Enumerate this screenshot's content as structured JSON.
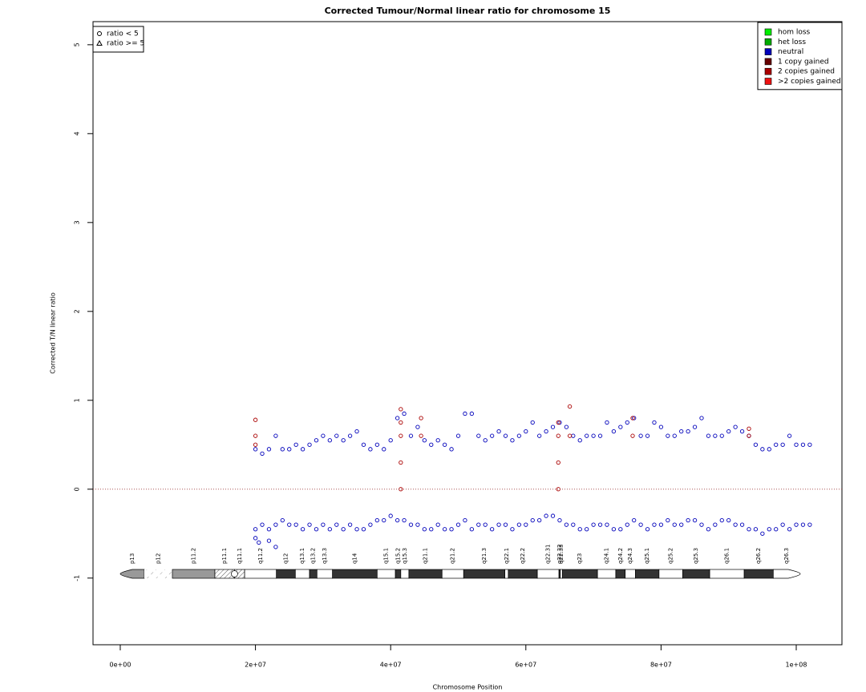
{
  "chart_data": {
    "type": "scatter",
    "title": "Corrected Tumour/Normal linear ratio for chromosome  15",
    "x_label": "Chromosome Position",
    "y_label": "Corrected T/N linear ratio",
    "xlim": [
      -4030000,
      106760000
    ],
    "ylim": [
      -1.75,
      5.26
    ],
    "xticks": [
      {
        "value": 0,
        "label": "0e+00"
      },
      {
        "value": 20000000,
        "label": "2e+07"
      },
      {
        "value": 40000000,
        "label": "4e+07"
      },
      {
        "value": 60000000,
        "label": "6e+07"
      },
      {
        "value": 80000000,
        "label": "8e+07"
      },
      {
        "value": 100000000,
        "label": "1e+08"
      }
    ],
    "yticks": [
      -1,
      0,
      1,
      2,
      3,
      4,
      5
    ],
    "reference_line": 0,
    "legend": "topright",
    "shape_legend": {
      "position": "topleft",
      "entries": [
        {
          "label": "ratio < 5",
          "shape": "circle"
        },
        {
          "label": "ratio >= 5",
          "shape": "triangle"
        }
      ]
    },
    "series": [
      {
        "name": "hom loss",
        "color": "#00ee00",
        "x": [],
        "y": []
      },
      {
        "name": "het loss",
        "color": "#00aa00",
        "x": [],
        "y": []
      },
      {
        "name": "neutral",
        "color": "#0000bb",
        "x": [
          20000000.0,
          21000000.0,
          22000000.0,
          23000000.0,
          24000000.0,
          25000000.0,
          26000000.0,
          27000000.0,
          28000000.0,
          29000000.0,
          30000000.0,
          31000000.0,
          32000000.0,
          33000000.0,
          34000000.0,
          35000000.0,
          36000000.0,
          37000000.0,
          38000000.0,
          39000000.0,
          40000000.0,
          41000000.0,
          42000000.0,
          43000000.0,
          44000000.0,
          45000000.0,
          46000000.0,
          47000000.0,
          48000000.0,
          49000000.0,
          50000000.0,
          51000000.0,
          52000000.0,
          53000000.0,
          54000000.0,
          55000000.0,
          56000000.0,
          57000000.0,
          58000000.0,
          59000000.0,
          60000000.0,
          61000000.0,
          62000000.0,
          63000000.0,
          64000000.0,
          65000000.0,
          66000000.0,
          67000000.0,
          68000000.0,
          69000000.0,
          70000000.0,
          71000000.0,
          72000000.0,
          73000000.0,
          74000000.0,
          75000000.0,
          76000000.0,
          77000000.0,
          78000000.0,
          79000000.0,
          80000000.0,
          81000000.0,
          82000000.0,
          83000000.0,
          84000000.0,
          85000000.0,
          86000000.0,
          87000000.0,
          88000000.0,
          89000000.0,
          90000000.0,
          91000000.0,
          92000000.0,
          93000000.0,
          94000000.0,
          95000000.0,
          96000000.0,
          97000000.0,
          98000000.0,
          99000000.0,
          100000000.0,
          101000000.0,
          102000000.0,
          20000000.0,
          21000000.0,
          22000000.0,
          23000000.0,
          24000000.0,
          25000000.0,
          26000000.0,
          27000000.0,
          28000000.0,
          29000000.0,
          30000000.0,
          31000000.0,
          32000000.0,
          33000000.0,
          34000000.0,
          35000000.0,
          36000000.0,
          37000000.0,
          38000000.0,
          39000000.0,
          40000000.0,
          41000000.0,
          42000000.0,
          43000000.0,
          44000000.0,
          45000000.0,
          46000000.0,
          47000000.0,
          48000000.0,
          49000000.0,
          50000000.0,
          51000000.0,
          52000000.0,
          53000000.0,
          54000000.0,
          55000000.0,
          56000000.0,
          57000000.0,
          58000000.0,
          59000000.0,
          60000000.0,
          61000000.0,
          62000000.0,
          63000000.0,
          64000000.0,
          65000000.0,
          66000000.0,
          67000000.0,
          68000000.0,
          69000000.0,
          70000000.0,
          71000000.0,
          72000000.0,
          73000000.0,
          74000000.0,
          75000000.0,
          76000000.0,
          77000000.0,
          78000000.0,
          79000000.0,
          80000000.0,
          81000000.0,
          82000000.0,
          83000000.0,
          84000000.0,
          85000000.0,
          86000000.0,
          87000000.0,
          88000000.0,
          89000000.0,
          90000000.0,
          91000000.0,
          92000000.0,
          93000000.0,
          94000000.0,
          95000000.0,
          96000000.0,
          97000000.0,
          98000000.0,
          99000000.0,
          100000000.0,
          101000000.0,
          102000000.0,
          20000000.0,
          20500000.0,
          22000000.0,
          23000000.0
        ],
        "y": [
          0.45,
          0.4,
          0.45,
          0.6,
          0.45,
          0.45,
          0.5,
          0.45,
          0.5,
          0.55,
          0.6,
          0.55,
          0.6,
          0.55,
          0.6,
          0.65,
          0.5,
          0.45,
          0.5,
          0.45,
          0.55,
          0.8,
          0.85,
          0.6,
          0.7,
          0.55,
          0.5,
          0.55,
          0.5,
          0.45,
          0.6,
          0.85,
          0.85,
          0.6,
          0.55,
          0.6,
          0.65,
          0.6,
          0.55,
          0.6,
          0.65,
          0.75,
          0.6,
          0.65,
          0.7,
          0.75,
          0.7,
          0.6,
          0.55,
          0.6,
          0.6,
          0.6,
          0.75,
          0.65,
          0.7,
          0.75,
          0.8,
          0.6,
          0.6,
          0.75,
          0.7,
          0.6,
          0.6,
          0.65,
          0.65,
          0.7,
          0.8,
          0.6,
          0.6,
          0.6,
          0.65,
          0.7,
          0.65,
          0.6,
          0.5,
          0.45,
          0.45,
          0.5,
          0.5,
          0.6,
          0.5,
          0.5,
          0.5,
          -0.45,
          -0.4,
          -0.45,
          -0.4,
          -0.35,
          -0.4,
          -0.4,
          -0.45,
          -0.4,
          -0.45,
          -0.4,
          -0.45,
          -0.4,
          -0.45,
          -0.4,
          -0.45,
          -0.45,
          -0.4,
          -0.35,
          -0.35,
          -0.3,
          -0.35,
          -0.35,
          -0.4,
          -0.4,
          -0.45,
          -0.45,
          -0.4,
          -0.45,
          -0.45,
          -0.4,
          -0.35,
          -0.45,
          -0.4,
          -0.4,
          -0.45,
          -0.4,
          -0.4,
          -0.45,
          -0.4,
          -0.4,
          -0.35,
          -0.35,
          -0.3,
          -0.3,
          -0.35,
          -0.4,
          -0.4,
          -0.45,
          -0.45,
          -0.4,
          -0.4,
          -0.4,
          -0.45,
          -0.45,
          -0.4,
          -0.35,
          -0.4,
          -0.45,
          -0.4,
          -0.4,
          -0.35,
          -0.4,
          -0.4,
          -0.35,
          -0.35,
          -0.4,
          -0.45,
          -0.4,
          -0.35,
          -0.35,
          -0.4,
          -0.4,
          -0.45,
          -0.45,
          -0.5,
          -0.45,
          -0.45,
          -0.4,
          -0.45,
          -0.4,
          -0.4,
          -0.4,
          -0.55,
          -0.6,
          -0.58,
          -0.65
        ]
      },
      {
        "name": "1 copy gained",
        "color": "#660000",
        "x": [],
        "y": []
      },
      {
        "name": "2 copies gained",
        "color": "#aa0000",
        "x": [
          20000000.0,
          20000000.0,
          20000000.0,
          41500000.0,
          41500000.0,
          41500000.0,
          41500000.0,
          41500000.0,
          44500000.0,
          44500000.0,
          64800000.0,
          64800000.0,
          64800000.0,
          64800000.0,
          66500000.0,
          66500000.0,
          75800000.0,
          75800000.0,
          93000000.0,
          93000000.0
        ],
        "y": [
          0.78,
          0.6,
          0.5,
          0.9,
          0.75,
          0.6,
          0.3,
          0,
          0.8,
          0.6,
          0.75,
          0.6,
          0.3,
          0,
          0.93,
          0.6,
          0.8,
          0.6,
          0.68,
          0.6
        ]
      },
      {
        "name": ">2 copies gained",
        "color": "#ee1111",
        "x": [],
        "y": []
      }
    ],
    "bands": [
      {
        "name": "p13",
        "start": 0,
        "end": 3560000,
        "stain": "gvar"
      },
      {
        "name": "p12",
        "start": 3560000,
        "end": 7710000,
        "stain": "stalk"
      },
      {
        "name": "p11.2",
        "start": 7710000,
        "end": 14000000,
        "stain": "gvar"
      },
      {
        "name": "p11.1",
        "start": 14000000,
        "end": 16900000,
        "stain": "acen"
      },
      {
        "name": "q11.1",
        "start": 16900000,
        "end": 18400000,
        "stain": "acen"
      },
      {
        "name": "q11.2",
        "start": 18400000,
        "end": 23100000,
        "stain": "gneg"
      },
      {
        "name": "q12",
        "start": 23100000,
        "end": 25900000,
        "stain": "gpos"
      },
      {
        "name": "q13.1",
        "start": 25900000,
        "end": 28000000,
        "stain": "gneg"
      },
      {
        "name": "q13.2",
        "start": 28000000,
        "end": 29100000,
        "stain": "gpos"
      },
      {
        "name": "q13.3",
        "start": 29100000,
        "end": 31400000,
        "stain": "gneg"
      },
      {
        "name": "q14",
        "start": 31400000,
        "end": 38000000,
        "stain": "gpos"
      },
      {
        "name": "q15.1",
        "start": 38000000,
        "end": 40700000,
        "stain": "gneg"
      },
      {
        "name": "q15.2",
        "start": 40700000,
        "end": 41500000,
        "stain": "gpos"
      },
      {
        "name": "q15.3",
        "start": 41500000,
        "end": 42700000,
        "stain": "gneg"
      },
      {
        "name": "q21.1",
        "start": 42700000,
        "end": 47600000,
        "stain": "gpos"
      },
      {
        "name": "q21.2",
        "start": 47600000,
        "end": 50800000,
        "stain": "gneg"
      },
      {
        "name": "q21.3",
        "start": 50800000,
        "end": 56900000,
        "stain": "gpos"
      },
      {
        "name": "q22.1",
        "start": 56900000,
        "end": 57400000,
        "stain": "gneg"
      },
      {
        "name": "q22.2",
        "start": 57400000,
        "end": 61700000,
        "stain": "gpos"
      },
      {
        "name": "q22.31",
        "start": 61700000,
        "end": 64900000,
        "stain": "gneg"
      },
      {
        "name": "q22.32",
        "start": 64900000,
        "end": 65100000,
        "stain": "gpos"
      },
      {
        "name": "q22.33",
        "start": 65100000,
        "end": 65400000,
        "stain": "gneg"
      },
      {
        "name": "q23",
        "start": 65400000,
        "end": 70600000,
        "stain": "gpos"
      },
      {
        "name": "q24.1",
        "start": 70600000,
        "end": 73300000,
        "stain": "gneg"
      },
      {
        "name": "q24.2",
        "start": 73300000,
        "end": 74700000,
        "stain": "gpos"
      },
      {
        "name": "q24.3",
        "start": 74700000,
        "end": 76200000,
        "stain": "gneg"
      },
      {
        "name": "q25.1",
        "start": 76200000,
        "end": 79700000,
        "stain": "gpos"
      },
      {
        "name": "q25.2",
        "start": 79700000,
        "end": 83200000,
        "stain": "gneg"
      },
      {
        "name": "q25.3",
        "start": 83200000,
        "end": 87200000,
        "stain": "gpos"
      },
      {
        "name": "q26.1",
        "start": 87200000,
        "end": 92300000,
        "stain": "gneg"
      },
      {
        "name": "q26.2",
        "start": 92300000,
        "end": 96600000,
        "stain": "gpos"
      },
      {
        "name": "q26.3",
        "start": 96600000,
        "end": 100600000,
        "stain": "gneg"
      }
    ]
  }
}
